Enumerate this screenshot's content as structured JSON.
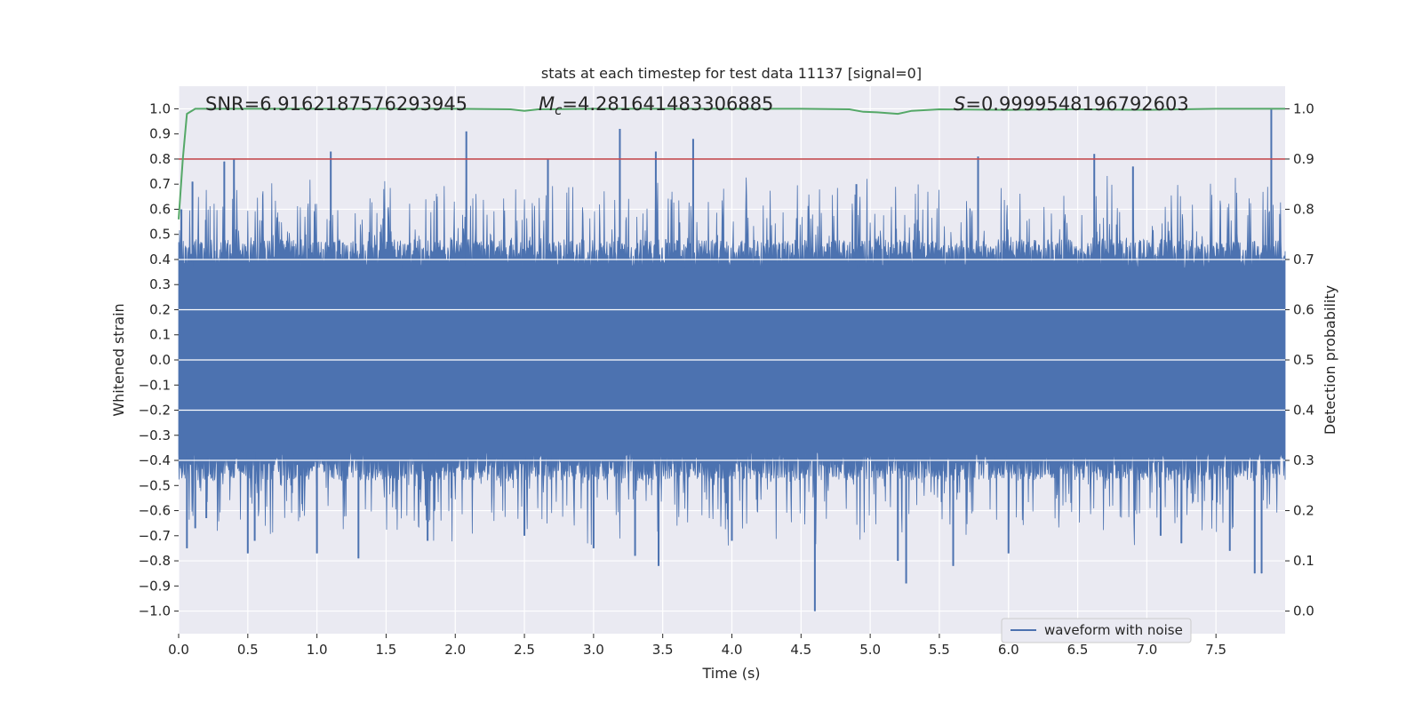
{
  "chart_data": {
    "type": "line",
    "title": "stats at each timestep for test data 11137 [signal=0]",
    "xlabel": "Time (s)",
    "ylabel": "Whitened strain",
    "y2label": "Detection probability",
    "xlim": [
      0.0,
      8.0
    ],
    "ylim": [
      -1.09,
      1.09
    ],
    "y2lim": [
      -0.045,
      1.045
    ],
    "xticks": [
      "0.0",
      "0.5",
      "1.0",
      "1.5",
      "2.0",
      "2.5",
      "3.0",
      "3.5",
      "4.0",
      "4.5",
      "5.0",
      "5.5",
      "6.0",
      "6.5",
      "7.0",
      "7.5"
    ],
    "yticks": [
      "1.0",
      "0.9",
      "0.8",
      "0.7",
      "0.6",
      "0.5",
      "0.4",
      "0.3",
      "0.2",
      "0.1",
      "0.0",
      "−0.1",
      "−0.2",
      "−0.3",
      "−0.4",
      "−0.5",
      "−0.6",
      "−0.7",
      "−0.8",
      "−0.9",
      "−1.0"
    ],
    "y2ticks": [
      "1.0",
      "0.9",
      "0.8",
      "0.7",
      "0.6",
      "0.5",
      "0.4",
      "0.3",
      "0.2",
      "0.1",
      "0.0"
    ],
    "grid": true,
    "legend": {
      "position": "lower-right",
      "entries": [
        "waveform with noise"
      ]
    },
    "annotations": [
      {
        "prefix": "SNR",
        "value": "=6.9162187576293945"
      },
      {
        "prefix": "M",
        "subscript": "c",
        "value": "=4.281641483306885"
      },
      {
        "prefix": "S",
        "value": "=0.9999548196792603"
      }
    ],
    "threshold": {
      "y2": 0.9,
      "color": "#c44e52"
    },
    "series": [
      {
        "name": "waveform with noise",
        "kind": "noise-envelope",
        "color": "#4c72b0",
        "peaks": [
          {
            "x": 0.02,
            "y": 0.6
          },
          {
            "x": 0.06,
            "y": -0.75
          },
          {
            "x": 0.1,
            "y": 0.71
          },
          {
            "x": 0.12,
            "y": -0.67
          },
          {
            "x": 0.2,
            "y": -0.63
          },
          {
            "x": 0.33,
            "y": 0.79
          },
          {
            "x": 0.4,
            "y": 0.8
          },
          {
            "x": 0.5,
            "y": -0.77
          },
          {
            "x": 0.55,
            "y": -0.72
          },
          {
            "x": 1.0,
            "y": -0.77
          },
          {
            "x": 1.1,
            "y": 0.83
          },
          {
            "x": 1.3,
            "y": -0.79
          },
          {
            "x": 1.8,
            "y": -0.72
          },
          {
            "x": 2.08,
            "y": 0.91
          },
          {
            "x": 2.5,
            "y": -0.7
          },
          {
            "x": 2.67,
            "y": 0.8
          },
          {
            "x": 3.0,
            "y": -0.75
          },
          {
            "x": 3.19,
            "y": 0.92
          },
          {
            "x": 3.3,
            "y": -0.78
          },
          {
            "x": 3.45,
            "y": 0.83
          },
          {
            "x": 3.47,
            "y": -0.82
          },
          {
            "x": 3.72,
            "y": 0.88
          },
          {
            "x": 4.0,
            "y": -0.72
          },
          {
            "x": 4.6,
            "y": -1.0
          },
          {
            "x": 4.9,
            "y": 0.7
          },
          {
            "x": 5.2,
            "y": -0.8
          },
          {
            "x": 5.26,
            "y": -0.89
          },
          {
            "x": 5.6,
            "y": -0.82
          },
          {
            "x": 5.78,
            "y": 0.81
          },
          {
            "x": 6.0,
            "y": -0.77
          },
          {
            "x": 6.62,
            "y": 0.82
          },
          {
            "x": 6.9,
            "y": 0.77
          },
          {
            "x": 7.1,
            "y": -0.7
          },
          {
            "x": 7.25,
            "y": -0.73
          },
          {
            "x": 7.6,
            "y": -0.76
          },
          {
            "x": 7.78,
            "y": -0.85
          },
          {
            "x": 7.83,
            "y": -0.85
          },
          {
            "x": 7.9,
            "y": 1.0
          }
        ]
      },
      {
        "name": "",
        "axis": "y2",
        "color": "#55a868",
        "x": [
          0.0,
          0.03,
          0.06,
          0.12,
          0.5,
          1.0,
          1.5,
          2.0,
          2.4,
          2.5,
          2.6,
          3.0,
          3.5,
          4.0,
          4.5,
          4.85,
          4.95,
          5.05,
          5.2,
          5.3,
          5.5,
          6.0,
          6.5,
          7.0,
          7.5,
          8.0
        ],
        "y": [
          0.78,
          0.9,
          0.99,
          1.0,
          1.0,
          1.0,
          1.0,
          1.0,
          0.999,
          0.996,
          0.999,
          1.0,
          1.0,
          1.0,
          1.0,
          0.999,
          0.994,
          0.993,
          0.99,
          0.996,
          0.999,
          0.998,
          0.999,
          0.998,
          1.0,
          1.0
        ]
      }
    ]
  }
}
